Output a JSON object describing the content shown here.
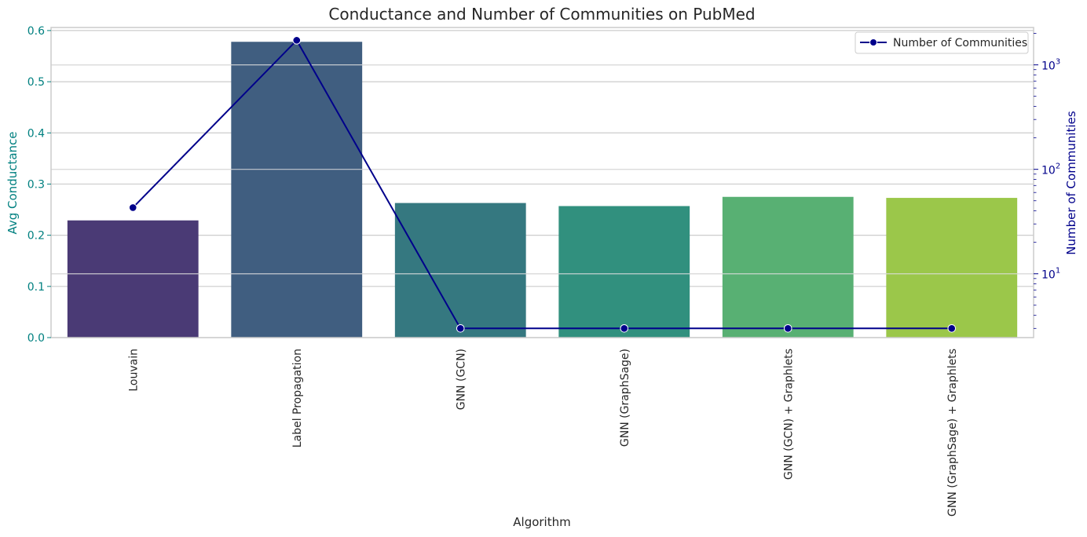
{
  "chart_data": {
    "type": "bar",
    "title": "Conductance and Number of Communities on PubMed",
    "xlabel": "Algorithm",
    "ylabel": "Avg Conductance",
    "y2label": "Number of Communities",
    "categories": [
      "Louvain",
      "Label Propagation",
      "GNN (GCN)",
      "GNN (GraphSage)",
      "GNN (GCN) + Graphlets",
      "GNN (GraphSage) + Graphlets"
    ],
    "bar_colors": [
      "#4a3a75",
      "#405e80",
      "#357880",
      "#31907e",
      "#58b073",
      "#9bc74a"
    ],
    "series": [
      {
        "kind": "bar",
        "axis": "left",
        "values": [
          0.229,
          0.578,
          0.263,
          0.257,
          0.275,
          0.273
        ]
      },
      {
        "kind": "line",
        "axis": "right",
        "name": "Number of Communities",
        "color": "#00008b",
        "values": [
          43,
          1718,
          3,
          3,
          3,
          3
        ]
      }
    ],
    "ylim": [
      0,
      0.606
    ],
    "y_ticks": [
      0.0,
      0.1,
      0.2,
      0.3,
      0.4,
      0.5,
      0.6
    ],
    "y2_scale": "log",
    "y2lim": [
      2.45,
      2280
    ],
    "y2_ticks": [
      {
        "base": "10",
        "exp": "1",
        "value": 10
      },
      {
        "base": "10",
        "exp": "2",
        "value": 100
      },
      {
        "base": "10",
        "exp": "3",
        "value": 1000
      }
    ],
    "legend_position": "top-right",
    "grid": true,
    "left_axis_color": "#008080",
    "right_axis_color": "#00008b"
  }
}
